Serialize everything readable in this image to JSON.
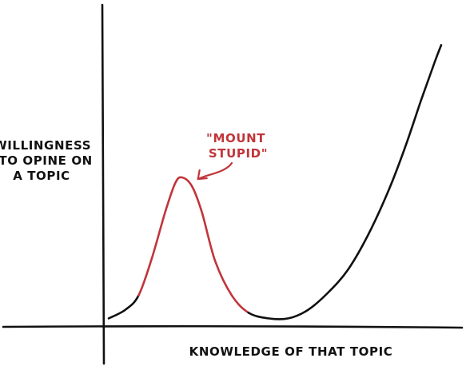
{
  "colors": {
    "ink": "#111111",
    "highlight": "#c0353a",
    "background": "#ffffff"
  },
  "chart_data": {
    "type": "line",
    "title": "",
    "xlabel": "KNOWLEDGE OF THAT TOPIC",
    "ylabel_lines": [
      "WILLINGNESS",
      "TO OPINE ON",
      "A TOPIC"
    ],
    "x_ticks": "none",
    "y_ticks": "none",
    "grid": false,
    "legend": "none",
    "series": [
      {
        "style": "sketched curve",
        "color": "#111111",
        "highlight_color": "#c0353a",
        "highlight_x_range": [
          0.09,
          0.42
        ],
        "x": [
          0.0,
          0.05,
          0.09,
          0.13,
          0.17,
          0.2,
          0.22,
          0.25,
          0.28,
          0.32,
          0.37,
          0.42,
          0.48,
          0.54,
          0.6,
          0.66,
          0.72,
          0.78,
          0.84,
          0.89,
          0.94,
          0.98,
          1.0
        ],
        "y": [
          0.01,
          0.04,
          0.09,
          0.22,
          0.38,
          0.48,
          0.5,
          0.47,
          0.38,
          0.21,
          0.09,
          0.03,
          0.01,
          0.01,
          0.04,
          0.1,
          0.18,
          0.3,
          0.45,
          0.6,
          0.77,
          0.9,
          0.96
        ]
      }
    ],
    "annotation": {
      "lines": [
        "\"MOUNT",
        "STUPID\""
      ],
      "points_to_x": 0.23,
      "points_to_y": 0.5
    }
  }
}
